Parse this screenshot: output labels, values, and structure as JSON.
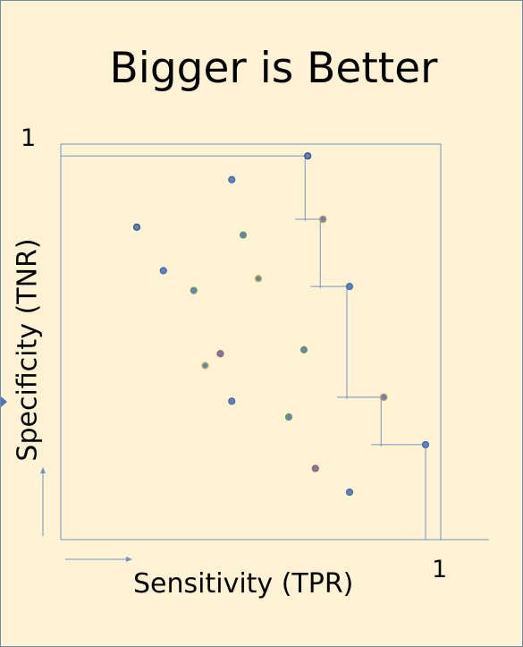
{
  "title": "Bigger is Better",
  "axes": {
    "x_label": "Sensitivity (TPR)",
    "y_label": "Specificity (TNR)",
    "x_max_label": "1",
    "y_max_label": "1"
  },
  "colors": {
    "background": "#fff3d3",
    "line": "#6f93c9",
    "point_fill": "#5b83c9",
    "point_dark": "#3a5584",
    "point_ring_green": "#6f9a4f",
    "point_ring_orange": "#c98a4a",
    "point_ring_yellow": "#c7b13a",
    "point_ring_red": "#b35a4a"
  },
  "chart_data": {
    "type": "scatter",
    "x_range": [
      0,
      1
    ],
    "y_range": [
      0,
      1
    ],
    "points": [
      {
        "x": 0.65,
        "y": 0.97,
        "ring": "dark",
        "frontier": true
      },
      {
        "x": 0.69,
        "y": 0.81,
        "ring": "orange",
        "frontier": true
      },
      {
        "x": 0.76,
        "y": 0.64,
        "ring": "blue",
        "frontier": true
      },
      {
        "x": 0.85,
        "y": 0.36,
        "ring": "orange",
        "frontier": true
      },
      {
        "x": 0.96,
        "y": 0.24,
        "ring": "blue",
        "frontier": true
      },
      {
        "x": 0.45,
        "y": 0.91,
        "ring": "blue",
        "frontier": false
      },
      {
        "x": 0.2,
        "y": 0.79,
        "ring": "dark",
        "frontier": false
      },
      {
        "x": 0.48,
        "y": 0.77,
        "ring": "green",
        "frontier": false
      },
      {
        "x": 0.27,
        "y": 0.68,
        "ring": "blue",
        "frontier": false
      },
      {
        "x": 0.35,
        "y": 0.63,
        "ring": "green",
        "frontier": false
      },
      {
        "x": 0.52,
        "y": 0.66,
        "ring": "yellow",
        "frontier": false
      },
      {
        "x": 0.64,
        "y": 0.48,
        "ring": "green",
        "frontier": false
      },
      {
        "x": 0.42,
        "y": 0.47,
        "ring": "red",
        "frontier": false
      },
      {
        "x": 0.38,
        "y": 0.44,
        "ring": "yellow",
        "frontier": false
      },
      {
        "x": 0.45,
        "y": 0.35,
        "ring": "blue",
        "frontier": false
      },
      {
        "x": 0.6,
        "y": 0.31,
        "ring": "green",
        "frontier": false
      },
      {
        "x": 0.67,
        "y": 0.18,
        "ring": "red",
        "frontier": false
      },
      {
        "x": 0.76,
        "y": 0.12,
        "ring": "blue",
        "frontier": false
      }
    ]
  }
}
